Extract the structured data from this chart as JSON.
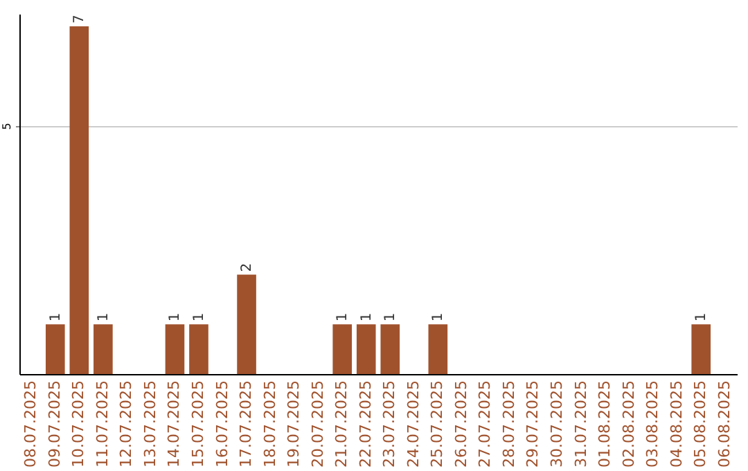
{
  "chart_data": {
    "type": "bar",
    "categories": [
      "08.07.2025",
      "09.07.2025",
      "10.07.2025",
      "11.07.2025",
      "12.07.2025",
      "13.07.2025",
      "14.07.2025",
      "15.07.2025",
      "16.07.2025",
      "17.07.2025",
      "18.07.2025",
      "19.07.2025",
      "20.07.2025",
      "21.07.2025",
      "22.07.2025",
      "23.07.2025",
      "24.07.2025",
      "25.07.2025",
      "26.07.2025",
      "27.07.2025",
      "28.07.2025",
      "29.07.2025",
      "30.07.2025",
      "31.07.2025",
      "01.08.2025",
      "02.08.2025",
      "03.08.2025",
      "04.08.2025",
      "05.08.2025",
      "06.08.2025"
    ],
    "values": [
      0,
      1,
      7,
      1,
      0,
      0,
      1,
      1,
      0,
      2,
      0,
      0,
      0,
      1,
      1,
      1,
      0,
      1,
      0,
      0,
      0,
      0,
      0,
      0,
      0,
      0,
      0,
      0,
      1,
      0
    ],
    "value_labels": [
      null,
      "1",
      "7",
      "1",
      null,
      null,
      "1",
      "1",
      null,
      "2",
      null,
      null,
      null,
      "1",
      "1",
      "1",
      null,
      "1",
      null,
      null,
      null,
      null,
      null,
      null,
      null,
      null,
      null,
      null,
      "1",
      null
    ],
    "color": "#a0522d",
    "ylim": [
      0,
      7.25
    ],
    "yticks": [
      5
    ],
    "grid": "y"
  }
}
